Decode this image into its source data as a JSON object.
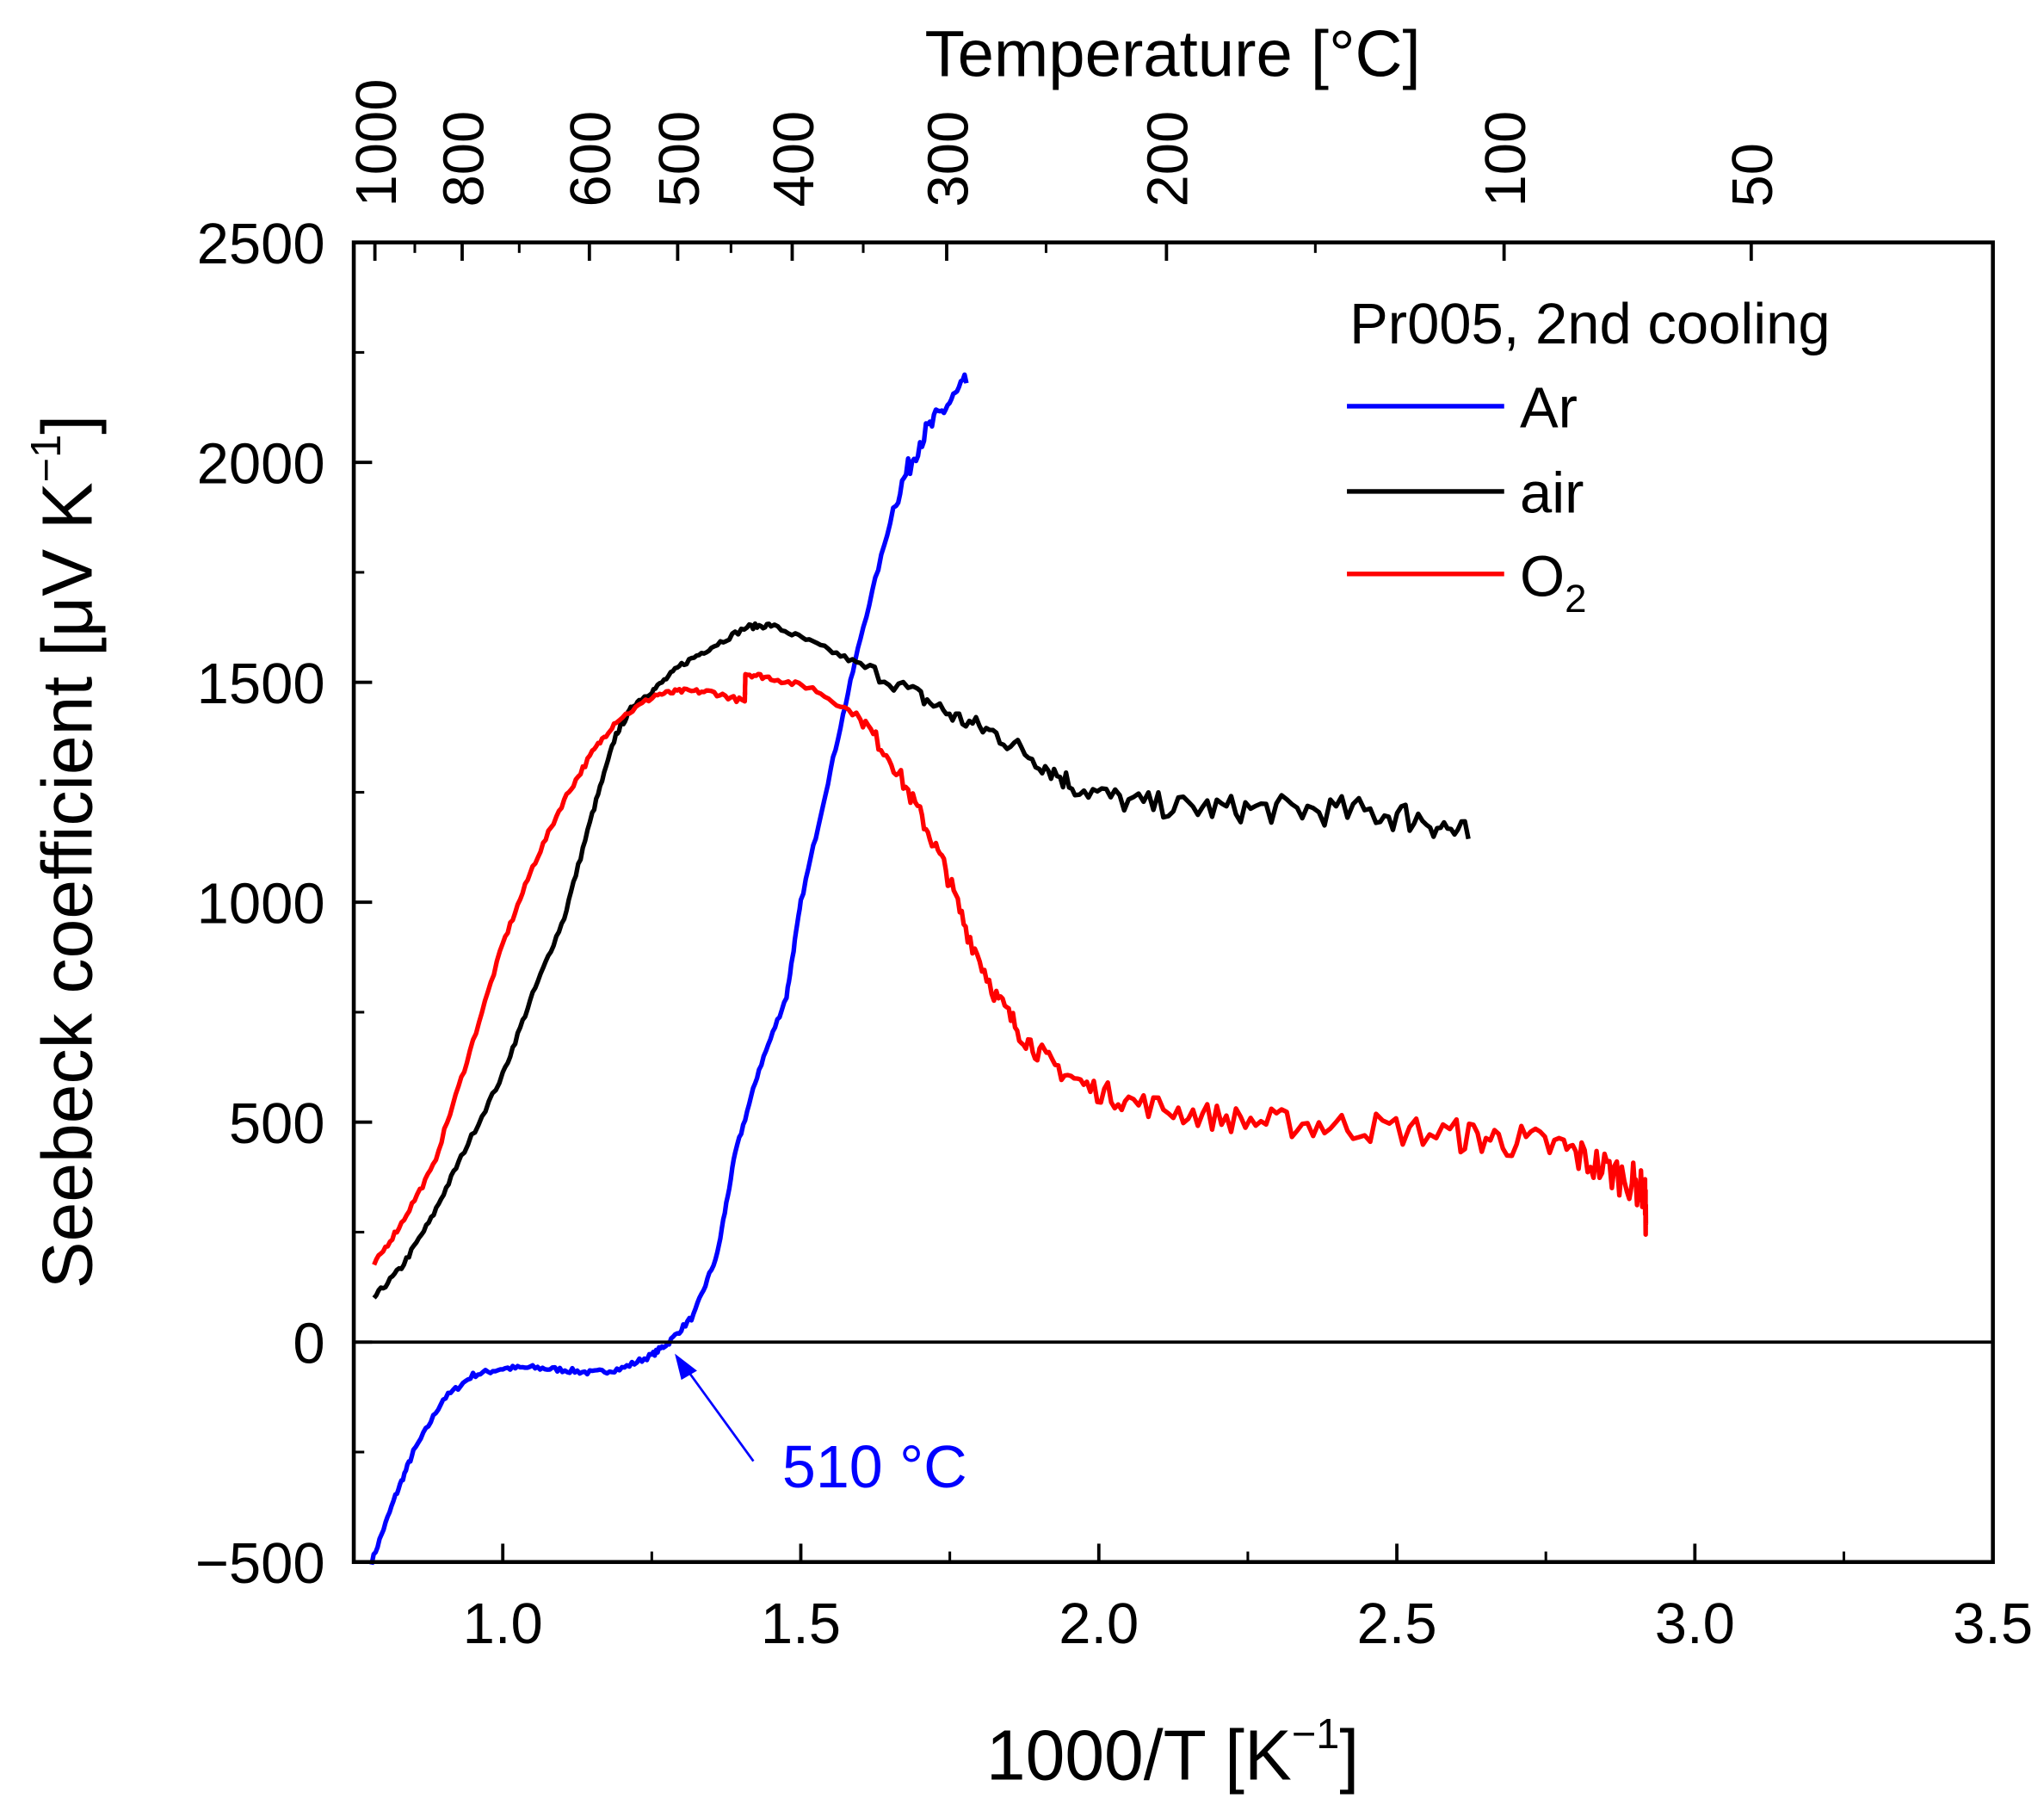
{
  "chart_data": {
    "type": "line",
    "xlabel": "1000/T [K",
    "xlabel_sup": "−1",
    "xlabel_end": "]",
    "ylabel": "Seebeck coefficient [μV K",
    "ylabel_sup": "−1",
    "ylabel_end": "]",
    "top_axis_label": "Temperature [°C]",
    "xlim": [
      0.75,
      3.5
    ],
    "ylim": [
      -500,
      2500
    ],
    "x_ticks": [
      "1.0",
      "1.5",
      "2.0",
      "2.5",
      "3.0",
      "3.5"
    ],
    "x_tick_values": [
      1.0,
      1.5,
      2.0,
      2.5,
      3.0,
      3.5
    ],
    "y_ticks": [
      "−500",
      "0",
      "500",
      "1000",
      "1500",
      "2000",
      "2500"
    ],
    "y_tick_values": [
      -500,
      0,
      500,
      1000,
      1500,
      2000,
      2500
    ],
    "top_ticks": [
      "1000",
      "800",
      "600",
      "500",
      "400",
      "300",
      "200",
      "100",
      "50"
    ],
    "top_tick_values_celsius": [
      1000,
      800,
      600,
      500,
      400,
      300,
      200,
      100,
      50
    ],
    "legend": {
      "title": "Pr005, 2nd cooling",
      "placement": "top-right"
    },
    "annotation": {
      "text": "510 °C",
      "x": 1.279,
      "y": 0,
      "color": "#0000ff"
    },
    "zero_line": true,
    "grid": false,
    "series": [
      {
        "name": "Ar",
        "label": "Ar",
        "color": "#0000ff",
        "x": [
          0.78,
          0.82,
          0.85,
          0.9,
          0.95,
          1.0,
          1.05,
          1.1,
          1.15,
          1.2,
          1.25,
          1.279,
          1.32,
          1.36,
          1.39,
          1.43,
          1.476,
          1.5,
          1.55,
          1.6,
          1.66,
          1.7,
          1.74,
          1.778
        ],
        "y": [
          -500,
          -350,
          -250,
          -130,
          -75,
          -60,
          -58,
          -63,
          -70,
          -60,
          -30,
          0,
          60,
          200,
          429,
          620,
          786,
          1000,
          1300,
          1600,
          1918,
          2050,
          2120,
          2180
        ]
      },
      {
        "name": "air",
        "label": "air",
        "color": "#000000",
        "x": [
          0.784,
          0.83,
          0.88,
          0.93,
          1.0,
          1.05,
          1.103,
          1.15,
          1.19,
          1.22,
          1.256,
          1.3,
          1.35,
          1.41,
          1.45,
          1.52,
          1.6,
          1.696,
          1.76,
          1.828,
          1.9,
          1.96,
          2.05,
          2.15,
          2.246,
          2.35,
          2.465,
          2.55,
          2.62
        ],
        "y": [
          101,
          170,
          280,
          420,
          608,
          790,
          965,
          1200,
          1382,
          1450,
          1486,
          1540,
          1580,
          1626,
          1630,
          1590,
          1540,
          1471,
          1420,
          1382,
          1320,
          1263,
          1227,
          1215,
          1212,
          1210,
          1203,
          1190,
          1144
        ]
      },
      {
        "name": "O2",
        "label": "O",
        "label_sub": "2",
        "color": "#ff0000",
        "x": [
          0.784,
          0.83,
          0.883,
          0.94,
          1.0,
          1.05,
          1.103,
          1.15,
          1.19,
          1.256,
          1.3,
          1.35,
          1.406,
          1.407,
          1.45,
          1.52,
          1.6,
          1.652,
          1.7,
          1.74,
          1.78,
          1.828,
          1.87,
          1.916,
          1.98,
          2.05,
          2.15,
          2.246,
          2.35,
          2.465,
          2.6,
          2.685,
          2.78,
          2.84,
          2.89,
          2.916,
          2.918
        ],
        "y": [
          176,
          270,
          399,
          640,
          905,
          1080,
          1233,
          1340,
          1412,
          1471,
          1480,
          1478,
          1456,
          1520,
          1510,
          1486,
          1420,
          1323,
          1200,
          1084,
          930,
          786,
          700,
          637,
          580,
          548,
          520,
          503,
          495,
          488,
          470,
          459,
          440,
          399,
          370,
          340,
          270
        ]
      }
    ]
  }
}
